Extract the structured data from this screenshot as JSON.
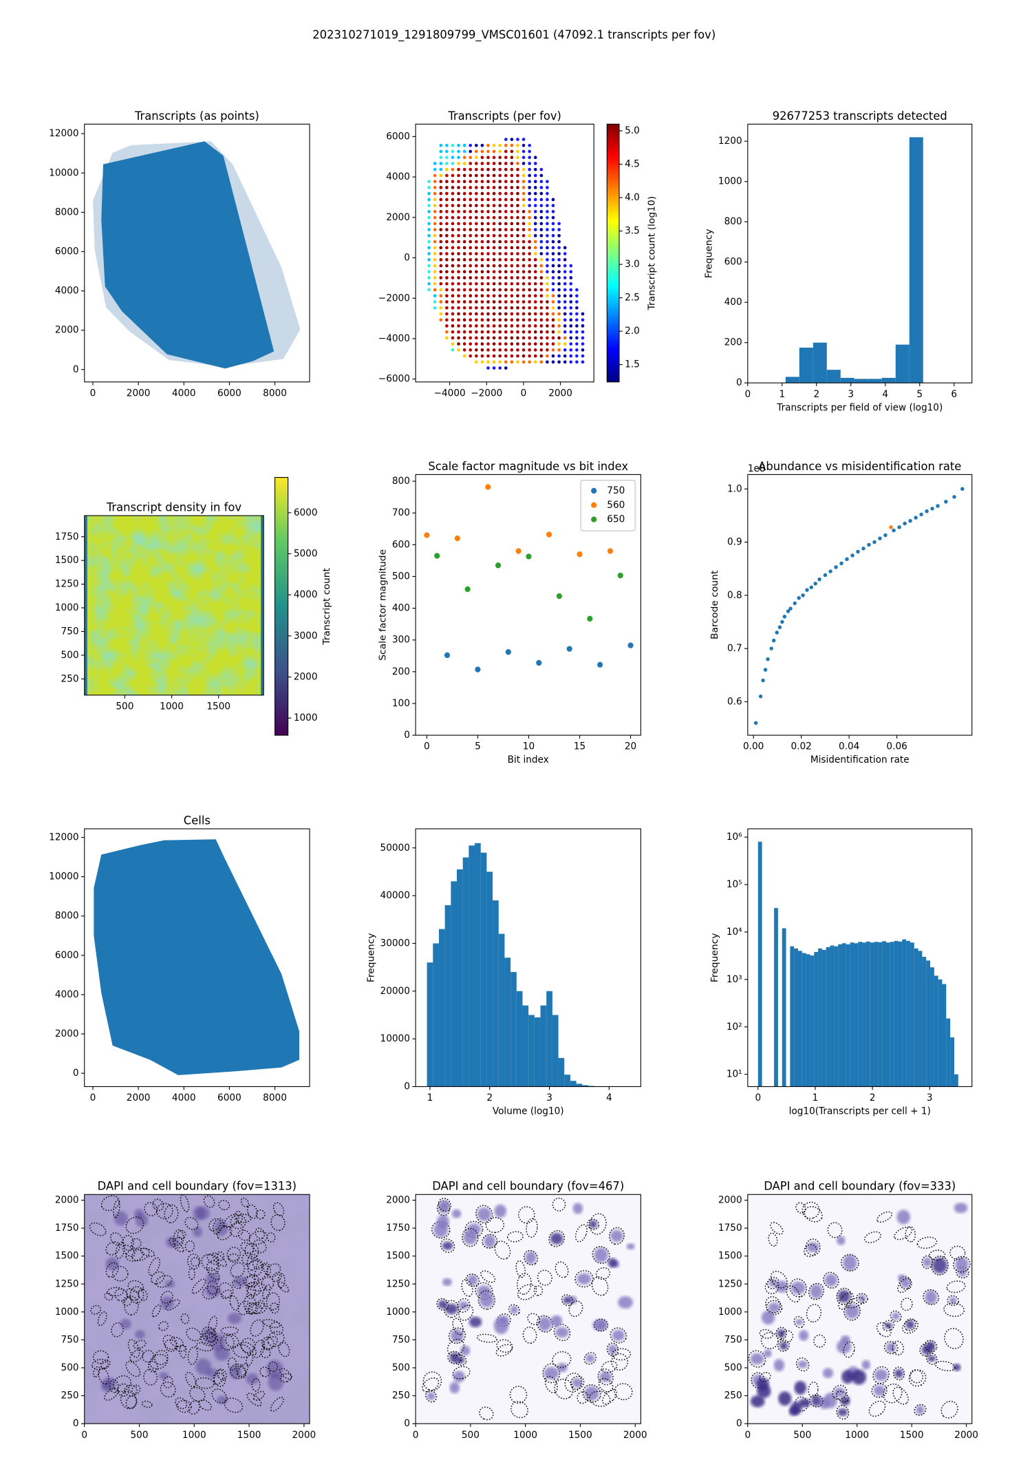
{
  "title": "202310271019_1291809799_VMSC01601 (47092.1 transcripts per fov)",
  "chart_data": [
    {
      "type": "image",
      "title": "Transcripts (as points)",
      "color": "#1f77b4",
      "xlim": [
        -371,
        9526
      ],
      "xticks": [
        0,
        2000,
        4000,
        6000,
        8000
      ],
      "ylim": [
        -632,
        12487
      ],
      "yticks": [
        0,
        2000,
        4000,
        6000,
        8000,
        10000,
        12000
      ]
    },
    {
      "type": "image",
      "title": "Transcripts (per fov)",
      "xlim": [
        -5847,
        3813
      ],
      "xticks": [
        {
          "value": -4000,
          "label": "−4000"
        },
        {
          "value": -2000,
          "label": "−2000"
        },
        0,
        2000
      ],
      "ylim": [
        -6142,
        6614
      ],
      "yticks": [
        {
          "value": -6000,
          "label": "−6000"
        },
        {
          "value": -4000,
          "label": "−4000"
        },
        {
          "value": -2000,
          "label": "−2000"
        },
        0,
        2000,
        4000,
        6000
      ],
      "colorbar": {
        "label": "Transcript count (log10)",
        "colormap": "jet",
        "lim": [
          1.24,
          5.1
        ],
        "ticks": [
          1.5,
          {
            "value": 2,
            "label": "2.0"
          },
          2.5,
          {
            "value": 3,
            "label": "3.0"
          },
          3.5,
          {
            "value": 4,
            "label": "4.0"
          },
          4.5,
          {
            "value": 5,
            "label": "5.0"
          }
        ]
      }
    },
    {
      "type": "histogram",
      "title": "92677253 transcripts detected",
      "color": "#1f77b4",
      "xlabel": "Transcripts per field of view (log10)",
      "ylabel": "Frequency",
      "bins": [
        1.1,
        1.5,
        1.9,
        2.3,
        2.7,
        3.1,
        3.5,
        3.9,
        4.3,
        4.7,
        5.1
      ],
      "values": [
        30,
        175,
        200,
        65,
        25,
        20,
        20,
        25,
        190,
        1220
      ],
      "xlim": [
        0,
        6.52
      ],
      "xticks": [
        0,
        1,
        2,
        3,
        4,
        5,
        6
      ],
      "ylim": [
        0,
        1285
      ],
      "yticks": [
        0,
        200,
        400,
        600,
        800,
        1000,
        1200
      ]
    },
    {
      "type": "image",
      "title": "Transcript density in fov",
      "xlim": [
        70,
        1980
      ],
      "xticks": [
        500,
        1000,
        1500
      ],
      "ylim": [
        79,
        1973
      ],
      "yticks": [
        250,
        500,
        750,
        1000,
        1250,
        1500,
        1750
      ],
      "colorbar": {
        "label": "Transcript count",
        "colormap": "viridis",
        "lim": [
          581,
          6860
        ],
        "ticks": [
          1000,
          2000,
          3000,
          4000,
          5000,
          6000
        ]
      }
    },
    {
      "type": "scatter",
      "title": "Scale factor magnitude vs bit index",
      "xlabel": "Bit index",
      "ylabel": "Scale factor magnitude",
      "legend": "upper right",
      "series": [
        {
          "name": "750",
          "color": "#1f77b4",
          "x": [
            2,
            5,
            8,
            11,
            14,
            17,
            20
          ],
          "values": [
            252,
            207,
            262,
            228,
            272,
            222,
            283
          ]
        },
        {
          "name": "560",
          "color": "#ff7f0e",
          "x": [
            0,
            3,
            6,
            9,
            12,
            15,
            18
          ],
          "values": [
            630,
            620,
            782,
            580,
            632,
            570,
            580
          ]
        },
        {
          "name": "650",
          "color": "#2ca02c",
          "x": [
            1,
            4,
            7,
            10,
            13,
            16,
            19
          ],
          "values": [
            565,
            460,
            535,
            563,
            438,
            367,
            503
          ]
        }
      ],
      "xlim": [
        -1.1,
        21
      ],
      "xticks": [
        0,
        5,
        10,
        15,
        20
      ],
      "ylim": [
        0,
        821
      ],
      "yticks": [
        0,
        100,
        200,
        300,
        400,
        500,
        600,
        700,
        800
      ]
    },
    {
      "type": "scatter",
      "title": "Abundance vs misidentification rate",
      "offset_text": "1e8",
      "xlabel": "Misidentification rate",
      "ylabel": "Barcode count",
      "series": [
        {
          "color": "#1f77b4",
          "x": [
            0.001,
            0.003,
            0.004,
            0.005,
            0.006,
            0.0075,
            0.0085,
            0.0098,
            0.011,
            0.012,
            0.013,
            0.0145,
            0.0155,
            0.0173,
            0.019,
            0.0207,
            0.0224,
            0.0242,
            0.0259,
            0.0276,
            0.03,
            0.0322,
            0.0345,
            0.0368,
            0.0391,
            0.0414,
            0.0437,
            0.046,
            0.0483,
            0.0506,
            0.0529,
            0.0552,
            0.0587,
            0.061,
            0.0633,
            0.0656,
            0.0679,
            0.0702,
            0.0725,
            0.0748,
            0.0771,
            0.0805,
            0.084,
            0.0874
          ],
          "values": [
            0.56,
            0.61,
            0.64,
            0.66,
            0.68,
            0.7,
            0.715,
            0.73,
            0.74,
            0.75,
            0.76,
            0.77,
            0.775,
            0.785,
            0.795,
            0.8,
            0.81,
            0.815,
            0.822,
            0.83,
            0.838,
            0.845,
            0.853,
            0.86,
            0.868,
            0.875,
            0.882,
            0.888,
            0.895,
            0.9,
            0.907,
            0.913,
            0.922,
            0.928,
            0.935,
            0.94,
            0.946,
            0.952,
            0.958,
            0.963,
            0.968,
            0.976,
            0.985,
            1.0
          ]
        },
        {
          "color": "#ff7f0e",
          "x": [
            0.0575
          ],
          "values": [
            0.928
          ]
        }
      ],
      "xlim": [
        -0.0024,
        0.0914
      ],
      "xticks": [
        {
          "value": 0,
          "label": "0.00"
        },
        0.02,
        0.04,
        0.06
      ],
      "ylim": [
        0.537,
        1.027
      ],
      "yticks": [
        0.6,
        0.7,
        0.8,
        0.9,
        {
          "value": 1,
          "label": "1.0"
        }
      ]
    },
    {
      "type": "image",
      "title": "Cells",
      "color": "#1f77b4",
      "xlim": [
        -371,
        9526
      ],
      "xticks": [
        0,
        2000,
        4000,
        6000,
        8000
      ],
      "ylim": [
        -680,
        12437
      ],
      "yticks": [
        0,
        2000,
        4000,
        6000,
        8000,
        10000,
        12000
      ]
    },
    {
      "type": "histogram",
      "color": "#1f77b4",
      "xlabel": "Volume (log10)",
      "ylabel": "Frequency",
      "bins": [
        0.95,
        1.05,
        1.15,
        1.25,
        1.35,
        1.45,
        1.55,
        1.65,
        1.75,
        1.85,
        1.95,
        2.05,
        2.15,
        2.25,
        2.35,
        2.45,
        2.55,
        2.65,
        2.75,
        2.85,
        2.95,
        3.05,
        3.15,
        3.25,
        3.35,
        3.45,
        3.55,
        3.65,
        3.75,
        3.85,
        3.95,
        4.05,
        4.15,
        4.25
      ],
      "values": [
        26000,
        30000,
        33000,
        38000,
        43000,
        45500,
        48000,
        50500,
        51000,
        49000,
        45000,
        39000,
        32000,
        27000,
        24000,
        20000,
        17000,
        15000,
        14500,
        17000,
        20000,
        15000,
        6000,
        2500,
        1200,
        600,
        300,
        150,
        80,
        40,
        20,
        10,
        5
      ],
      "xlim": [
        0.76,
        4.53
      ],
      "xticks": [
        1,
        2,
        3,
        4
      ],
      "ylim": [
        0,
        54000
      ],
      "yticks": [
        0,
        10000,
        20000,
        30000,
        40000,
        50000
      ]
    },
    {
      "type": "histogram",
      "color": "#1f77b4",
      "ylog": true,
      "xlabel": "log10(Transcripts per cell + 1)",
      "ylabel": "Frequency",
      "bins": [
        0,
        0.07,
        0.14,
        0.21,
        0.28,
        0.35,
        0.42,
        0.49,
        0.56,
        0.63,
        0.7,
        0.77,
        0.84,
        0.91,
        0.98,
        1.05,
        1.12,
        1.19,
        1.26,
        1.33,
        1.4,
        1.47,
        1.54,
        1.61,
        1.68,
        1.75,
        1.82,
        1.89,
        1.96,
        2.03,
        2.1,
        2.17,
        2.24,
        2.31,
        2.38,
        2.45,
        2.52,
        2.59,
        2.66,
        2.73,
        2.8,
        2.87,
        2.94,
        3.01,
        3.08,
        3.15,
        3.22,
        3.29,
        3.36,
        3.43,
        3.5
      ],
      "values": [
        800000,
        0,
        0,
        0,
        32000,
        0,
        12000,
        0,
        5000,
        4500,
        4000,
        3600,
        3400,
        3200,
        3800,
        4500,
        4200,
        4800,
        5200,
        5000,
        5500,
        5800,
        5500,
        6000,
        5800,
        6200,
        6000,
        6300,
        6000,
        6200,
        6100,
        6400,
        6000,
        6200,
        6500,
        6300,
        7000,
        6500,
        6000,
        4500,
        4000,
        3000,
        2500,
        1800,
        1200,
        1000,
        800,
        150,
        60,
        10
      ],
      "xlim": [
        -0.18,
        3.74
      ],
      "xticks": [
        0,
        1,
        2,
        3
      ],
      "ylim": [
        5.5,
        1500000
      ],
      "yticks": [
        {
          "value": 10,
          "label": "10¹"
        },
        {
          "value": 100,
          "label": "10²"
        },
        {
          "value": 1000,
          "label": "10³"
        },
        {
          "value": 10000,
          "label": "10⁴"
        },
        {
          "value": 100000,
          "label": "10⁵"
        },
        {
          "value": 1000000,
          "label": "10⁶"
        }
      ]
    },
    {
      "type": "image",
      "title": "DAPI and cell boundary (fov=1313)",
      "xlim": [
        0,
        2051
      ],
      "xticks": [
        0,
        500,
        1000,
        1500,
        2000
      ],
      "ylim": [
        0,
        2051
      ],
      "yticks": [
        0,
        250,
        500,
        750,
        1000,
        1250,
        1500,
        1750,
        2000
      ]
    },
    {
      "type": "image",
      "title": "DAPI and cell boundary (fov=467)",
      "xlim": [
        0,
        2051
      ],
      "xticks": [
        0,
        500,
        1000,
        1500,
        2000
      ],
      "ylim": [
        0,
        2051
      ],
      "yticks": [
        0,
        250,
        500,
        750,
        1000,
        1250,
        1500,
        1750,
        2000
      ]
    },
    {
      "type": "image",
      "title": "DAPI and cell boundary (fov=333)",
      "xlim": [
        0,
        2051
      ],
      "xticks": [
        0,
        500,
        1000,
        1500,
        2000
      ],
      "ylim": [
        0,
        2051
      ],
      "yticks": [
        0,
        250,
        500,
        750,
        1000,
        1250,
        1500,
        1750,
        2000
      ]
    }
  ]
}
